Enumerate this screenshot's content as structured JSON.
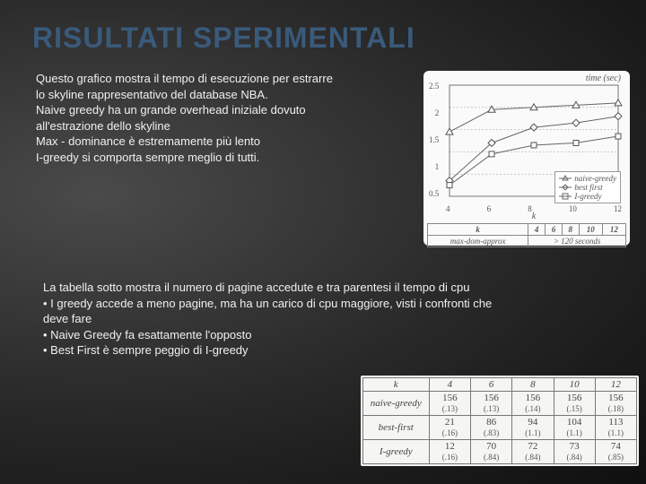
{
  "title": "RISULTATI SPERIMENTALI",
  "para1": {
    "l1": "Questo grafico mostra il tempo di esecuzione per estrarre",
    "l2": "lo skyline rappresentativo del database NBA.",
    "l3": "Naive greedy ha un grande overhead iniziale dovuto",
    "l4": "all'estrazione dello skyline",
    "l5": "Max - dominance è estremamente più lento",
    "l6": "I-greedy si comporta sempre meglio di tutti."
  },
  "chart": {
    "type": "line",
    "ylabel": "time (sec)",
    "xlabel": "k",
    "xticks": [
      "4",
      "6",
      "8",
      "10",
      "12"
    ],
    "yticks": [
      "2.5",
      "2",
      "1.5",
      "1",
      "0.5"
    ],
    "xlim": [
      4,
      12
    ],
    "ylim": [
      0,
      2.5
    ],
    "series": {
      "naive_greedy": {
        "label": "naive-greedy",
        "marker": "triangle",
        "color": "#666666",
        "values": [
          1.45,
          1.95,
          2.0,
          2.05,
          2.1
        ]
      },
      "best_first": {
        "label": "best first",
        "marker": "diamond",
        "color": "#666666",
        "values": [
          0.35,
          1.2,
          1.55,
          1.65,
          1.8
        ]
      },
      "i_greedy": {
        "label": "I-greedy",
        "marker": "square",
        "color": "#666666",
        "values": [
          0.25,
          0.95,
          1.15,
          1.2,
          1.35
        ]
      }
    },
    "legend_pos": "lower-right",
    "line_width": 1,
    "grid_color": "#999999",
    "background_color": "#fafafa"
  },
  "mini": {
    "header": "k",
    "cols": [
      "4",
      "6",
      "8",
      "10",
      "12"
    ],
    "rowlabel": "max-dom-approx",
    "rowvalue": "> 120 seconds"
  },
  "para2": {
    "l1": "La tabella sotto mostra il numero di pagine accedute e tra parentesi il tempo di cpu",
    "l2": "• I greedy accede a meno pagine, ma ha un carico di cpu maggiore, visti i confronti che",
    "l3": "deve fare",
    "l4": "• Naive Greedy fa esattamente l'opposto",
    "l5": "• Best First è sempre peggio di I-greedy"
  },
  "table": {
    "header": [
      "k",
      "4",
      "6",
      "8",
      "10",
      "12"
    ],
    "rows": [
      {
        "name": "naive-greedy",
        "vals": [
          "156",
          "156",
          "156",
          "156",
          "156"
        ],
        "sub": [
          "(.13)",
          "(.13)",
          "(.14)",
          "(.15)",
          "(.18)"
        ]
      },
      {
        "name": "best-first",
        "vals": [
          "21",
          "86",
          "94",
          "104",
          "113"
        ],
        "sub": [
          "(.16)",
          "(.83)",
          "(1.1)",
          "(1.1)",
          "(1.1)"
        ]
      },
      {
        "name": "I-greedy",
        "vals": [
          "12",
          "70",
          "72",
          "73",
          "74"
        ],
        "sub": [
          "(.16)",
          "(.84)",
          "(.84)",
          "(.84)",
          "(.85)"
        ]
      }
    ],
    "header_color": "#444444",
    "border_color": "#777777",
    "background_color": "#f5f5f2"
  }
}
